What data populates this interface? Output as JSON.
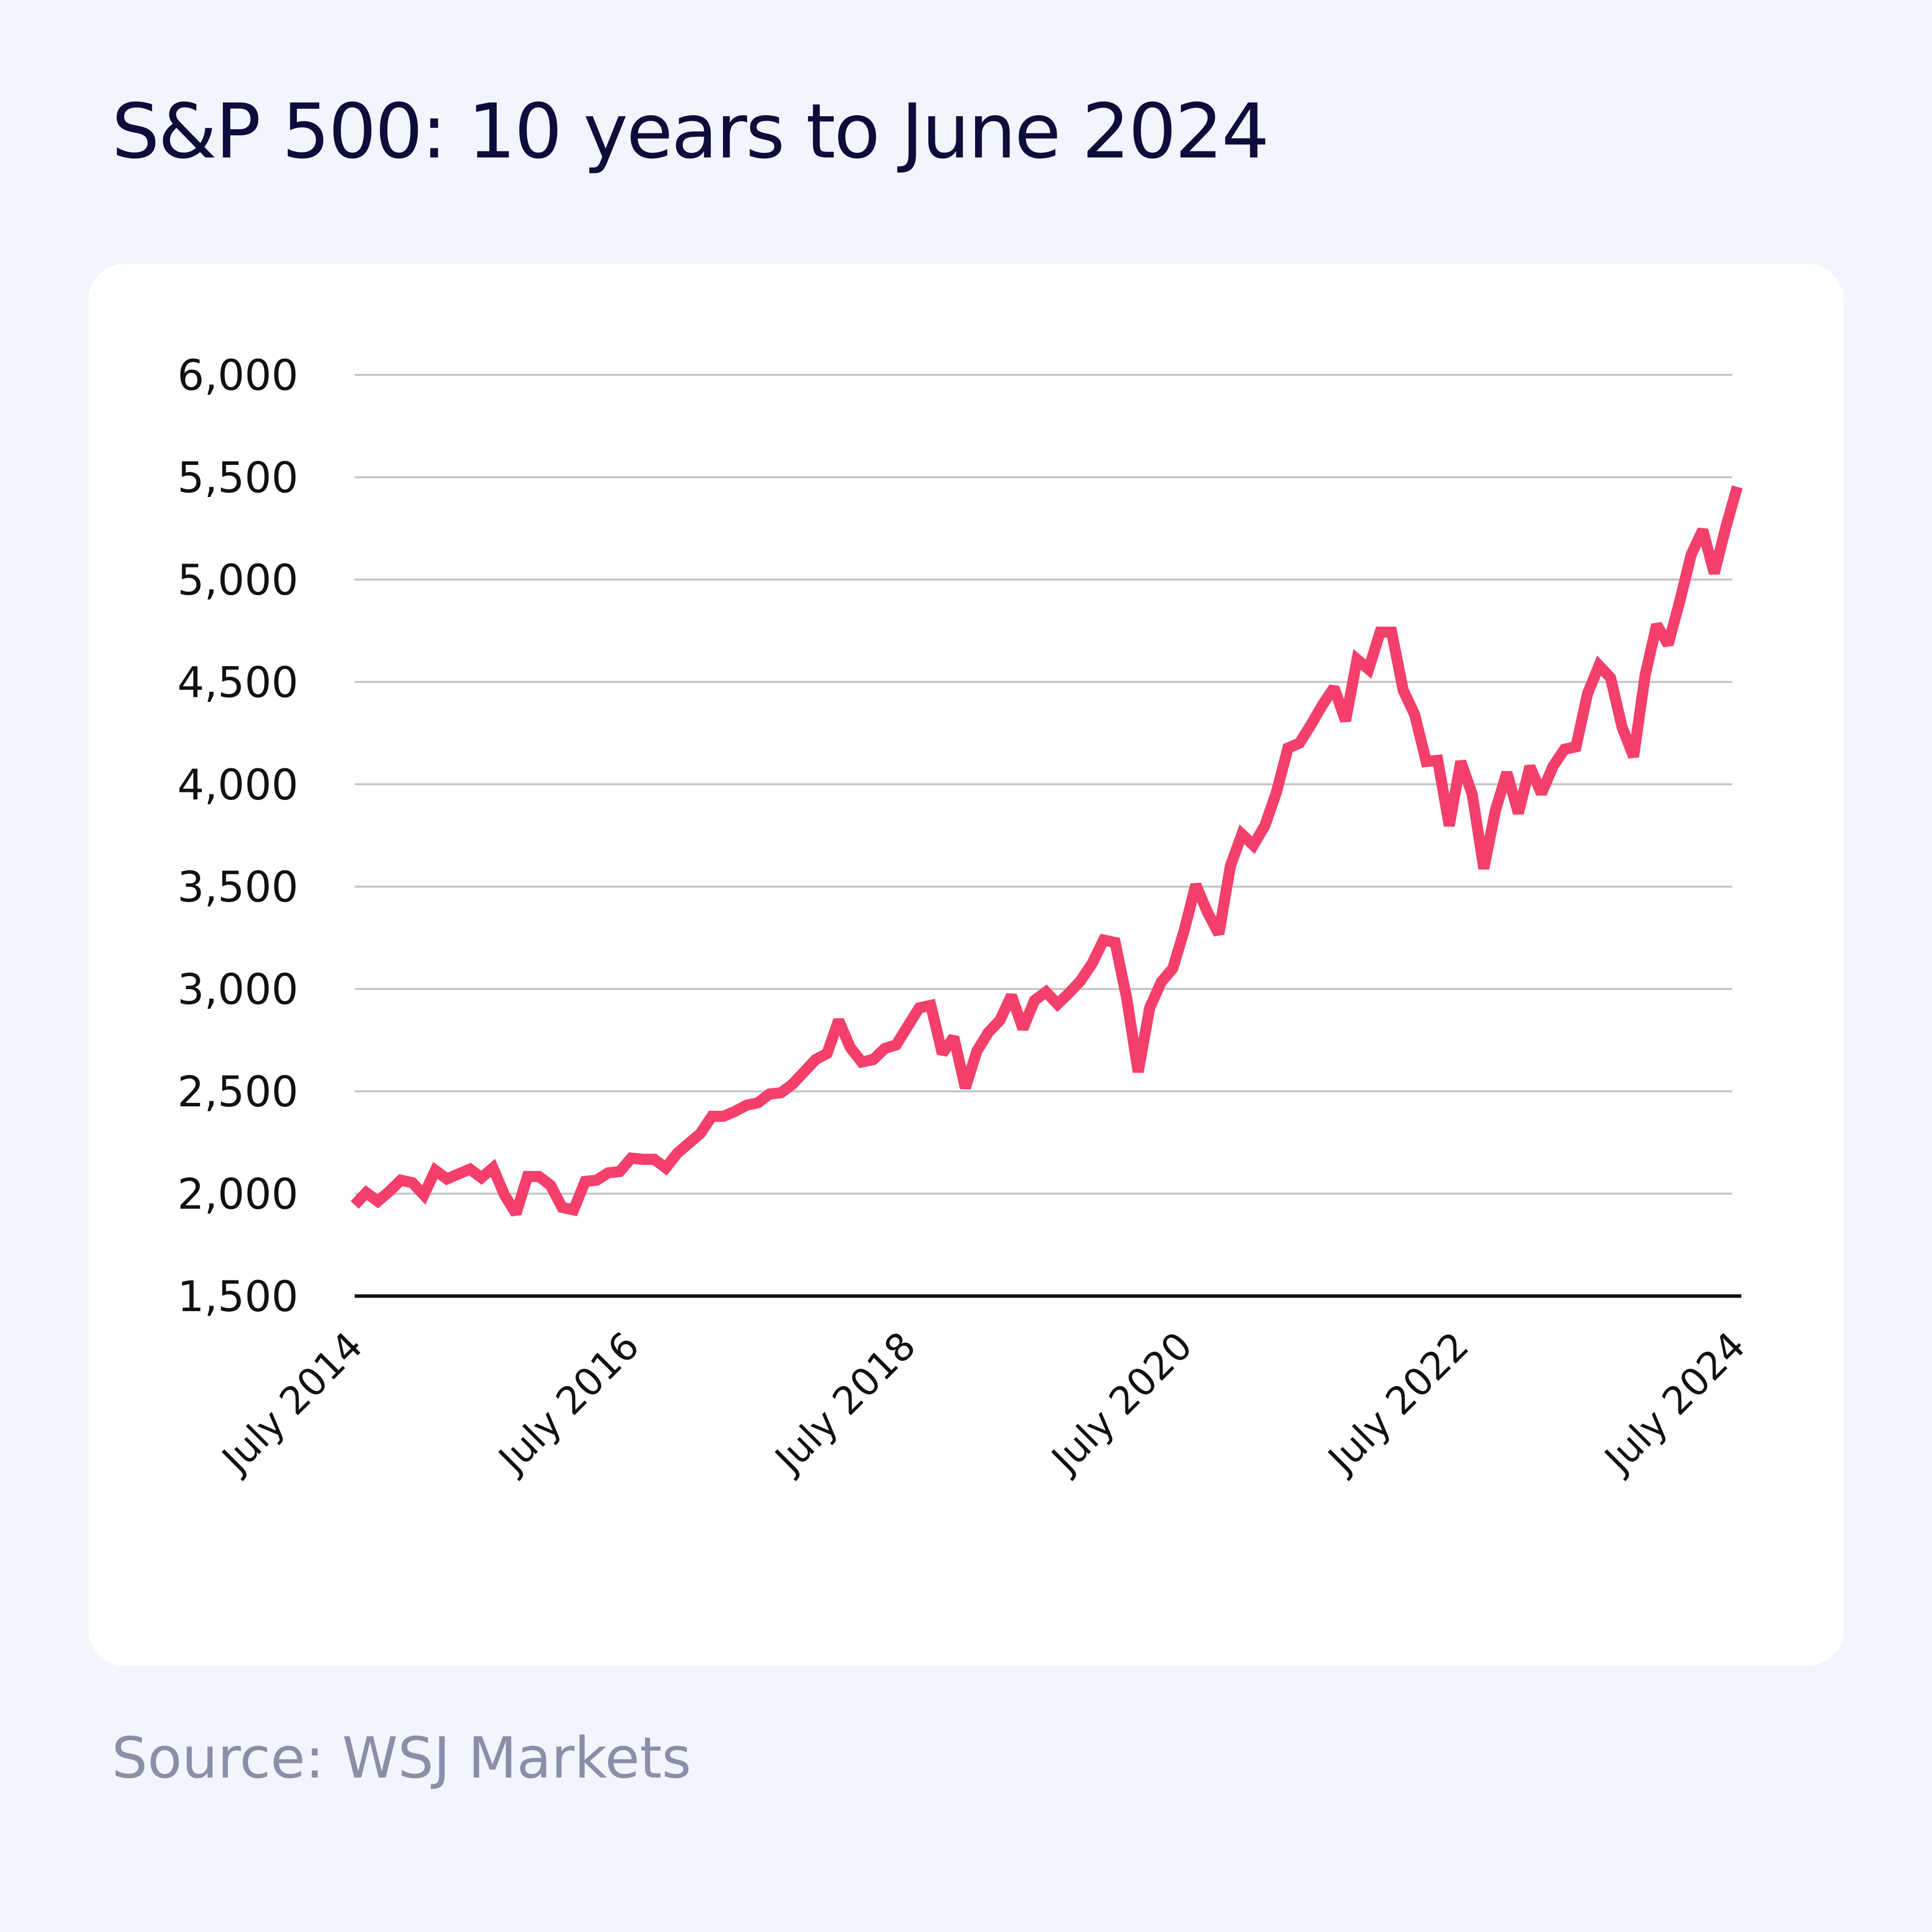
{
  "title": "S&P 500: 10 years to June 2024",
  "source": "Source: WSJ Markets",
  "colors": {
    "background": "#f2f5fd",
    "card": "#ffffff",
    "line": "#f43f6b",
    "grid": "#c4c4c4",
    "baseline": "#111111",
    "title": "#0d0d3b",
    "source": "#8a8fa8"
  },
  "chart_data": {
    "type": "line",
    "title": "S&P 500: 10 years to June 2024",
    "xlabel": "",
    "ylabel": "",
    "ylim": [
      1500,
      6000
    ],
    "yticks": [
      1500,
      2000,
      2500,
      3000,
      3500,
      4000,
      4500,
      5000,
      5500,
      6000
    ],
    "ytick_labels": [
      "1,500",
      "2,000",
      "2,500",
      "3,000",
      "3,500",
      "4,000",
      "4,500",
      "5,000",
      "5,500",
      "6,000"
    ],
    "xlim": [
      "2014-07",
      "2024-07"
    ],
    "xticks": [
      "2014-07",
      "2016-07",
      "2018-07",
      "2020-07",
      "2022-07",
      "2024-07"
    ],
    "xtick_labels": [
      "July 2014",
      "July 2016",
      "July 2018",
      "July 2020",
      "July 2022",
      "July 2024"
    ],
    "grid": "horizontal",
    "legend": "none",
    "x": [
      "2014-07",
      "2014-08",
      "2014-09",
      "2014-10",
      "2014-11",
      "2014-12",
      "2015-01",
      "2015-02",
      "2015-03",
      "2015-04",
      "2015-05",
      "2015-06",
      "2015-07",
      "2015-08",
      "2015-09",
      "2015-10",
      "2015-11",
      "2015-12",
      "2016-01",
      "2016-02",
      "2016-03",
      "2016-04",
      "2016-05",
      "2016-06",
      "2016-07",
      "2016-08",
      "2016-09",
      "2016-10",
      "2016-11",
      "2016-12",
      "2017-01",
      "2017-02",
      "2017-03",
      "2017-04",
      "2017-05",
      "2017-06",
      "2017-07",
      "2017-08",
      "2017-09",
      "2017-10",
      "2017-11",
      "2017-12",
      "2018-01",
      "2018-02",
      "2018-03",
      "2018-04",
      "2018-05",
      "2018-06",
      "2018-07",
      "2018-08",
      "2018-09",
      "2018-10",
      "2018-11",
      "2018-12",
      "2019-01",
      "2019-02",
      "2019-03",
      "2019-04",
      "2019-05",
      "2019-06",
      "2019-07",
      "2019-08",
      "2019-09",
      "2019-10",
      "2019-11",
      "2019-12",
      "2020-01",
      "2020-02",
      "2020-03",
      "2020-04",
      "2020-05",
      "2020-06",
      "2020-07",
      "2020-08",
      "2020-09",
      "2020-10",
      "2020-11",
      "2020-12",
      "2021-01",
      "2021-02",
      "2021-03",
      "2021-04",
      "2021-05",
      "2021-06",
      "2021-07",
      "2021-08",
      "2021-09",
      "2021-10",
      "2021-11",
      "2021-12",
      "2022-01",
      "2022-02",
      "2022-03",
      "2022-04",
      "2022-05",
      "2022-06",
      "2022-07",
      "2022-08",
      "2022-09",
      "2022-10",
      "2022-11",
      "2022-12",
      "2023-01",
      "2023-02",
      "2023-03",
      "2023-04",
      "2023-05",
      "2023-06",
      "2023-07",
      "2023-08",
      "2023-09",
      "2023-10",
      "2023-11",
      "2023-12",
      "2024-01",
      "2024-02",
      "2024-03",
      "2024-04",
      "2024-05",
      "2024-06",
      "2024-07"
    ],
    "series": [
      {
        "values": [
          1945,
          2005,
          1963,
          2011,
          2066,
          2054,
          1994,
          2114,
          2072,
          2096,
          2120,
          2078,
          2126,
          1994,
          1903,
          2084,
          2084,
          2041,
          1933,
          1921,
          2060,
          2066,
          2102,
          2108,
          2174,
          2168,
          2168,
          2126,
          2198,
          2246,
          2294,
          2378,
          2378,
          2402,
          2432,
          2444,
          2487,
          2493,
          2535,
          2595,
          2655,
          2685,
          2847,
          2715,
          2643,
          2655,
          2709,
          2727,
          2818,
          2908,
          2920,
          2685,
          2764,
          2517,
          2697,
          2788,
          2847,
          2968,
          2806,
          2944,
          2986,
          2926,
          2980,
          3040,
          3124,
          3239,
          3227,
          2956,
          2595,
          2908,
          3034,
          3100,
          3287,
          3509,
          3377,
          3269,
          3600,
          3756,
          3702,
          3798,
          3961,
          4177,
          4201,
          4291,
          4388,
          4472,
          4310,
          4610,
          4562,
          4743,
          4743,
          4460,
          4340,
          4111,
          4117,
          3798,
          4111,
          3949,
          3588,
          3871,
          4057,
          3859,
          4087,
          3955,
          4087,
          4171,
          4183,
          4442,
          4580,
          4520,
          4279,
          4135,
          4532,
          4779,
          4683,
          4893,
          5122,
          5242,
          5031,
          5254,
          5453
        ]
      }
    ]
  }
}
